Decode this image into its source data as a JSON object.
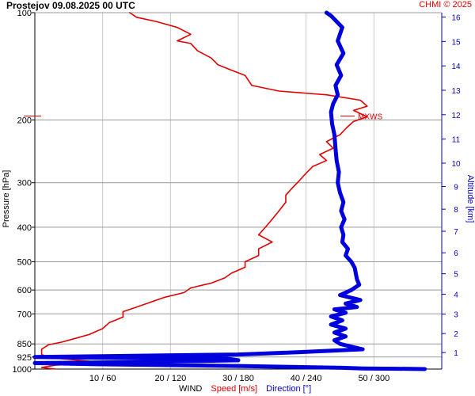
{
  "header": {
    "title": "Prostejov 09.08.2025 00 UTC",
    "credit": "CHMI © 2025"
  },
  "axes": {
    "left_label": "Pressure [hPa]",
    "right_label": "Altitude [km]",
    "bottom_prefix": "WIND",
    "bottom_speed": "Speed [m/s]",
    "bottom_direction": "Direction [°]"
  },
  "colors": {
    "speed": "#e00000",
    "direction": "#0000dd",
    "grid": "#c8c8c8",
    "axis": "#000000",
    "altitude_axis": "#0000cc",
    "mxws": "#e00000"
  },
  "chart_data": {
    "type": "line",
    "title": "Prostejov 09.08.2025 00 UTC",
    "ylabel": "Pressure [hPa]",
    "y2label": "Altitude [km]",
    "xlabel": "WIND Speed [m/s] Direction [°]",
    "y_scale": "log",
    "ylim": [
      1000,
      100
    ],
    "pressure_ticks": [
      "100",
      "200",
      "300",
      "400",
      "500",
      "600",
      "700",
      "850",
      "925",
      "1000"
    ],
    "altitude_ticks": [
      "1",
      "2",
      "3",
      "4",
      "5",
      "6",
      "7",
      "8",
      "9",
      "10",
      "11",
      "12",
      "13",
      "14",
      "15",
      "16"
    ],
    "x_ticks": [
      "10 / 60",
      "20 / 120",
      "30 / 180",
      "40 / 240",
      "50 / 300"
    ],
    "speed_xlim": [
      0,
      60
    ],
    "direction_xlim": [
      0,
      360
    ],
    "grid": true,
    "mxws_label": "MXWS",
    "mxws_pressure": 195,
    "series": [
      {
        "name": "Speed [m/s]",
        "axis": "speed",
        "points": [
          [
            3,
            1000
          ],
          [
            1,
            990
          ],
          [
            3,
            975
          ],
          [
            9,
            962
          ],
          [
            8,
            950
          ],
          [
            4,
            935
          ],
          [
            2,
            925
          ],
          [
            1,
            910
          ],
          [
            1,
            880
          ],
          [
            2,
            855
          ],
          [
            4,
            840
          ],
          [
            6,
            820
          ],
          [
            8,
            800
          ],
          [
            10,
            770
          ],
          [
            11,
            740
          ],
          [
            13,
            715
          ],
          [
            13,
            690
          ],
          [
            15,
            670
          ],
          [
            17,
            650
          ],
          [
            19,
            630
          ],
          [
            22,
            610
          ],
          [
            23,
            592
          ],
          [
            26,
            574
          ],
          [
            28,
            555
          ],
          [
            29,
            538
          ],
          [
            31,
            518
          ],
          [
            31,
            500
          ],
          [
            33,
            480
          ],
          [
            33,
            460
          ],
          [
            35,
            440
          ],
          [
            33,
            420
          ],
          [
            34,
            400
          ],
          [
            35,
            380
          ],
          [
            36,
            360
          ],
          [
            37,
            340
          ],
          [
            37,
            325
          ],
          [
            38,
            310
          ],
          [
            39,
            296
          ],
          [
            40,
            282
          ],
          [
            41,
            270
          ],
          [
            43,
            260
          ],
          [
            42,
            250
          ],
          [
            44,
            240
          ],
          [
            43,
            230
          ],
          [
            45,
            220
          ],
          [
            46,
            210
          ],
          [
            47,
            202
          ],
          [
            49,
            196
          ],
          [
            47,
            188
          ],
          [
            49,
            183
          ],
          [
            48,
            176
          ],
          [
            43,
            170
          ],
          [
            36,
            166
          ],
          [
            32,
            160
          ],
          [
            31,
            150
          ],
          [
            29,
            145
          ],
          [
            27,
            140
          ],
          [
            26,
            134
          ],
          [
            24,
            128
          ],
          [
            23,
            122
          ],
          [
            21,
            120
          ],
          [
            23,
            115
          ],
          [
            21,
            110
          ],
          [
            18,
            106
          ],
          [
            15,
            103
          ],
          [
            14,
            100
          ]
        ]
      },
      {
        "name": "Direction [°]",
        "axis": "direction",
        "points": [
          [
            345,
            1000
          ],
          [
            320,
            998
          ],
          [
            290,
            996
          ],
          [
            272,
            992
          ],
          [
            180,
            980
          ],
          [
            60,
            970
          ],
          [
            0,
            962
          ],
          [
            100,
            955
          ],
          [
            180,
            945
          ],
          [
            170,
            935
          ],
          [
            60,
            930
          ],
          [
            0,
            925
          ],
          [
            60,
            920
          ],
          [
            180,
            910
          ],
          [
            240,
            895
          ],
          [
            290,
            880
          ],
          [
            280,
            865
          ],
          [
            270,
            850
          ],
          [
            265,
            830
          ],
          [
            275,
            810
          ],
          [
            265,
            790
          ],
          [
            275,
            770
          ],
          [
            262,
            750
          ],
          [
            272,
            730
          ],
          [
            262,
            712
          ],
          [
            275,
            695
          ],
          [
            265,
            680
          ],
          [
            285,
            670
          ],
          [
            275,
            655
          ],
          [
            288,
            640
          ],
          [
            270,
            620
          ],
          [
            280,
            600
          ],
          [
            287,
            580
          ],
          [
            285,
            560
          ],
          [
            284,
            540
          ],
          [
            283,
            520
          ],
          [
            280,
            500
          ],
          [
            275,
            480
          ],
          [
            277,
            460
          ],
          [
            272,
            440
          ],
          [
            273,
            420
          ],
          [
            271,
            400
          ],
          [
            274,
            380
          ],
          [
            271,
            360
          ],
          [
            273,
            340
          ],
          [
            270,
            320
          ],
          [
            268,
            300
          ],
          [
            269,
            280
          ],
          [
            267,
            260
          ],
          [
            266,
            240
          ],
          [
            265,
            220
          ],
          [
            263,
            205
          ],
          [
            262,
            190
          ],
          [
            264,
            180
          ],
          [
            268,
            170
          ],
          [
            266,
            160
          ],
          [
            271,
            150
          ],
          [
            267,
            140
          ],
          [
            273,
            130
          ],
          [
            268,
            120
          ],
          [
            272,
            110
          ],
          [
            262,
            102
          ],
          [
            258,
            100
          ]
        ]
      }
    ]
  }
}
